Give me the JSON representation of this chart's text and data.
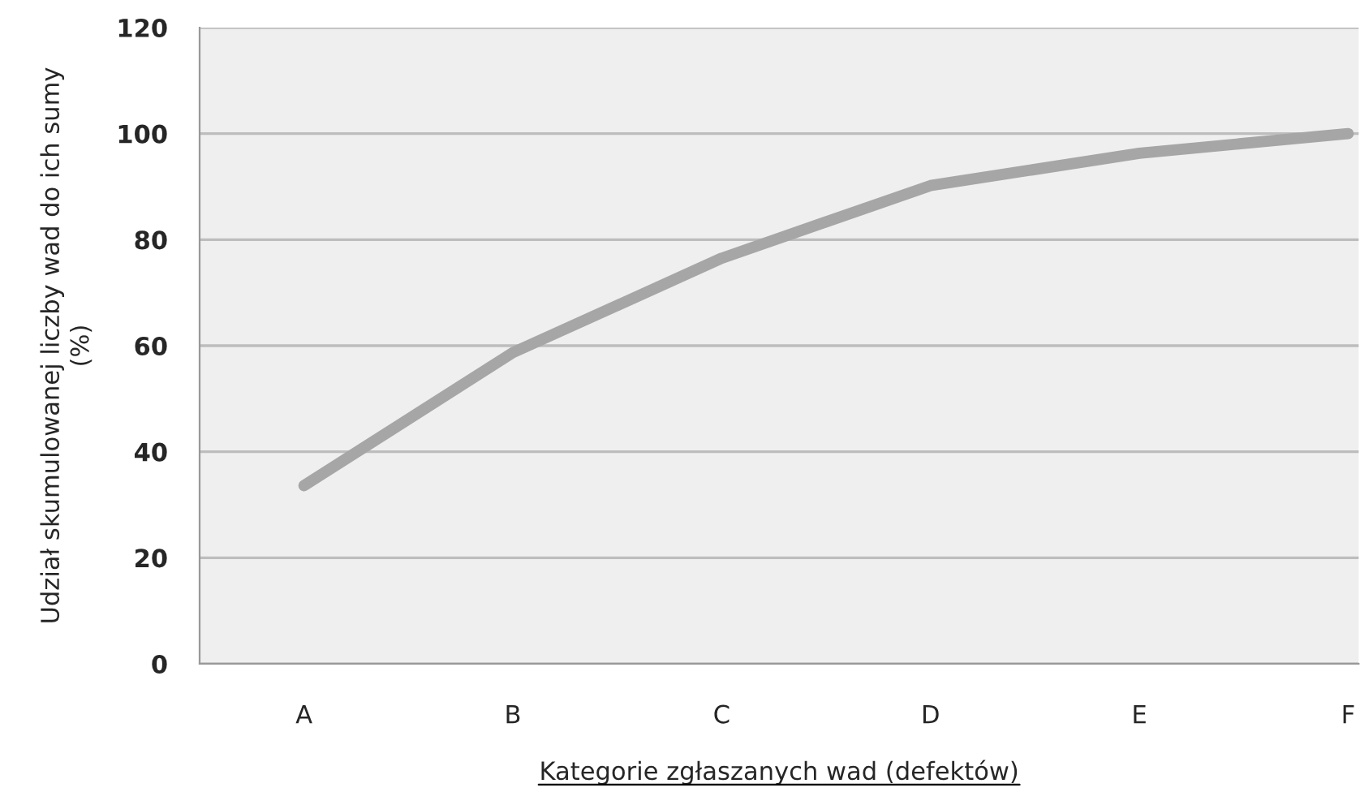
{
  "chart_data": {
    "type": "line",
    "xlabel": "Kategorie zgłaszanych wad (defektów)",
    "ylabel": "Udział skumulowanej liczby wad do ich sumy\n(%)",
    "categories": [
      "A",
      "B",
      "C",
      "D",
      "E",
      "F"
    ],
    "series": [
      {
        "color": "#a6a6a6",
        "values": [
          33.6,
          58.7,
          76.5,
          90.2,
          96.3,
          100
        ]
      }
    ],
    "ylim": [
      0,
      120
    ],
    "yticks": [
      0,
      20,
      40,
      60,
      80,
      100,
      120
    ],
    "grid": "y",
    "legend": false,
    "marker": "none",
    "line_style": "solid"
  }
}
